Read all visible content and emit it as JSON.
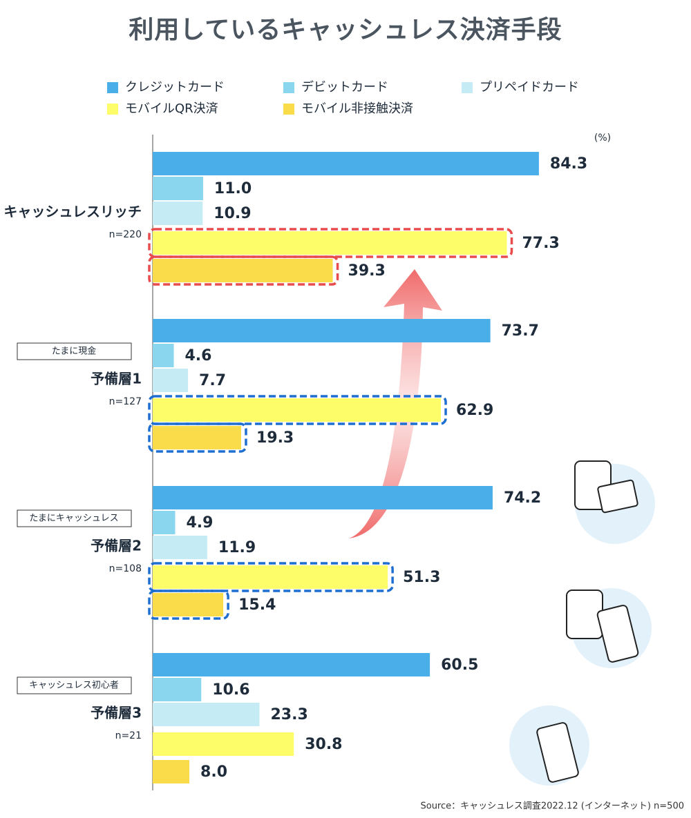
{
  "chart_data": {
    "type": "bar",
    "orientation": "horizontal",
    "title": "利用しているキャッシュレス決済手段",
    "unit": "(%)",
    "source": "Source：キャッシュレス調査2022.12 (インターネット) n=500",
    "categories": [
      "キャッシュレスリッチ",
      "予備層1",
      "予備層2",
      "予備層3"
    ],
    "sample_sizes": [
      "n=220",
      "n=127",
      "n=108",
      "n=21"
    ],
    "tags": [
      null,
      "たまに現金",
      "たまにキャッシュレス",
      "キャッシュレス初心者"
    ],
    "highlight_colors": [
      "#e84c4c",
      "#1f6fd1",
      "#1f6fd1",
      null
    ],
    "series": [
      {
        "name": "クレジットカード",
        "color": "#4aaee8",
        "values": [
          84.3,
          73.7,
          74.2,
          60.5
        ]
      },
      {
        "name": "デビットカード",
        "color": "#8ad6ef",
        "values": [
          11.0,
          4.6,
          4.9,
          10.6
        ],
        "value_labels": [
          "11.0",
          "4.6",
          "4.9",
          "10.6"
        ]
      },
      {
        "name": "プリペイドカード",
        "color": "#c5ecf5",
        "values": [
          10.9,
          7.7,
          11.9,
          23.3
        ]
      },
      {
        "name": "モバイルQR決済",
        "color": "#fdfd6a",
        "values": [
          77.3,
          62.9,
          51.3,
          30.8
        ]
      },
      {
        "name": "モバイル非接触決済",
        "color": "#fadc4a",
        "values": [
          39.3,
          19.3,
          15.4,
          8.0
        ],
        "value_labels": [
          "39.3",
          "19.3",
          "15.4",
          "8.0"
        ]
      }
    ]
  }
}
